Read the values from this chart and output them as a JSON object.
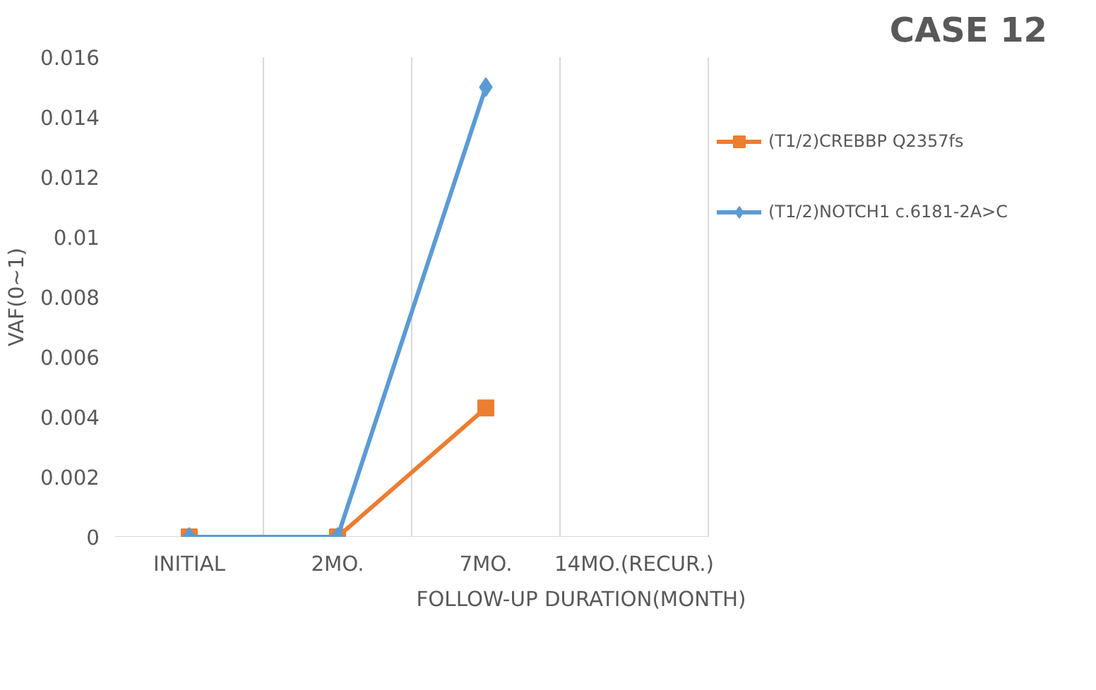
{
  "chart_data": {
    "type": "line",
    "title": "CASE 12",
    "xlabel": "FOLLOW-UP DURATION(MONTH)",
    "ylabel": "VAF(0~1)",
    "categories": [
      "INITIAL",
      "2MO.",
      "7MO.",
      "14MO.(RECUR.)"
    ],
    "series": [
      {
        "name": "(T1/2)CREBBP Q2357fs",
        "color": "#ed7d31",
        "marker": "square",
        "values": [
          0,
          0,
          0.0043,
          null
        ]
      },
      {
        "name": "(T1/2)NOTCH1 c.6181-2A>C",
        "color": "#5b9bd5",
        "marker": "diamond",
        "values": [
          0,
          0,
          0.015,
          null
        ]
      }
    ],
    "ylim": [
      0,
      0.016
    ],
    "yticks": [
      0,
      0.002,
      0.004,
      0.006,
      0.008,
      0.01,
      0.012,
      0.014,
      0.016
    ],
    "grid": "x",
    "legend": "right",
    "line_style": "solid"
  }
}
